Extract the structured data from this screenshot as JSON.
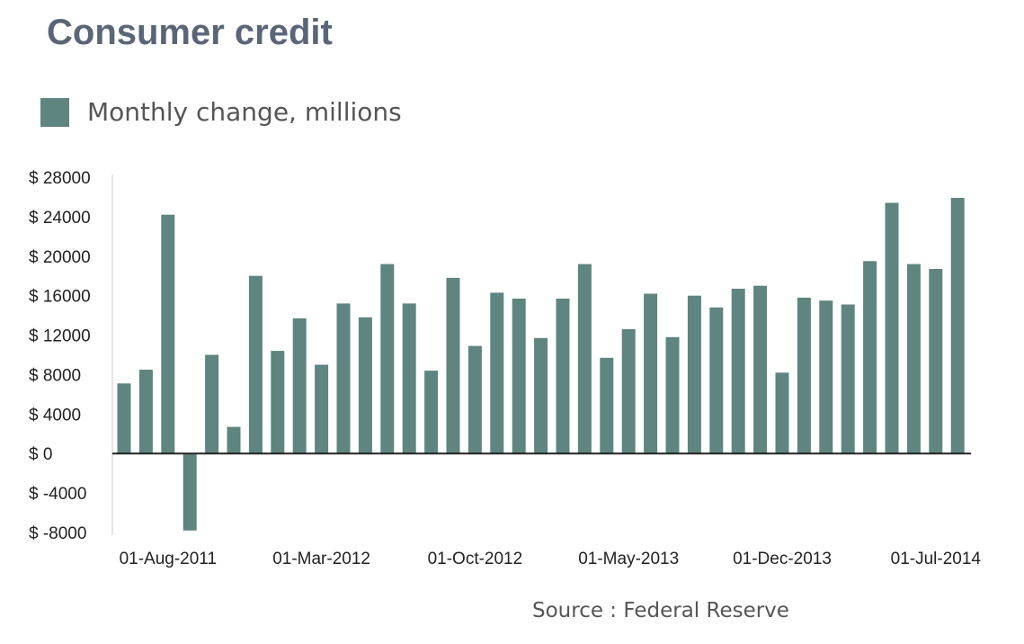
{
  "title": "Consumer credit",
  "source": "Source : Federal Reserve",
  "colors": {
    "bar": "#5f8580",
    "title": "#5a6577",
    "axis": "#222222"
  },
  "chart_data": {
    "type": "bar",
    "legend": [
      "Monthly change, millions"
    ],
    "legend_position": "top-left",
    "grid": false,
    "ylim": [
      -8000,
      28000
    ],
    "y_ticks": [
      28000,
      24000,
      20000,
      16000,
      12000,
      8000,
      4000,
      0,
      -4000,
      -8000
    ],
    "y_tick_labels": [
      "$ 28000",
      "$ 24000",
      "$ 20000",
      "$ 16000",
      "$ 12000",
      "$ 8000",
      "$ 4000",
      "$ 0",
      "$ -4000",
      "$ -8000"
    ],
    "x_tick_labels": [
      "01-Aug-2011",
      "01-Mar-2012",
      "01-Oct-2012",
      "01-May-2013",
      "01-Dec-2013",
      "01-Jul-2014"
    ],
    "categories": [
      "Jun-2011",
      "Jul-2011",
      "Aug-2011",
      "Sep-2011",
      "Oct-2011",
      "Nov-2011",
      "Dec-2011",
      "Jan-2012",
      "Feb-2012",
      "Mar-2012",
      "Apr-2012",
      "May-2012",
      "Jun-2012",
      "Jul-2012",
      "Aug-2012",
      "Sep-2012",
      "Oct-2012",
      "Nov-2012",
      "Dec-2012",
      "Jan-2013",
      "Feb-2013",
      "Mar-2013",
      "Apr-2013",
      "May-2013",
      "Jun-2013",
      "Jul-2013",
      "Aug-2013",
      "Sep-2013",
      "Oct-2013",
      "Nov-2013",
      "Dec-2013",
      "Jan-2014",
      "Feb-2014",
      "Mar-2014",
      "Apr-2014",
      "May-2014",
      "Jun-2014",
      "Jul-2014",
      "Aug-2014"
    ],
    "series": [
      {
        "name": "Monthly change, millions",
        "values": [
          7100,
          8500,
          24200,
          -7800,
          10000,
          2700,
          18000,
          10400,
          13700,
          9000,
          15200,
          13800,
          19200,
          15200,
          8400,
          17800,
          10900,
          16300,
          15700,
          11700,
          15700,
          19200,
          9700,
          12600,
          16200,
          11800,
          16000,
          14800,
          16700,
          17000,
          8200,
          15800,
          15500,
          15100,
          19500,
          25400,
          19200,
          18700,
          25900
        ]
      }
    ]
  }
}
